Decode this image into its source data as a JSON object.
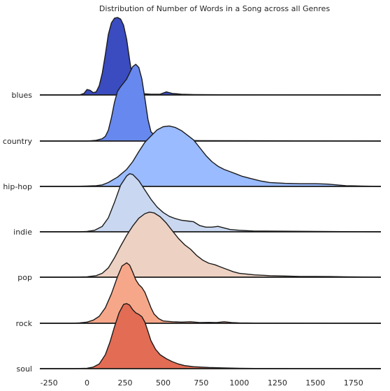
{
  "chart_data": {
    "type": "area",
    "title": "Distribution of Number of Words in a Song across all Genres",
    "xlabel": "",
    "ylabel": "",
    "xlim": [
      -310,
      1930
    ],
    "grid": false,
    "x_ticks": [
      "-250",
      "0",
      "250",
      "500",
      "750",
      "1000",
      "1250",
      "1500",
      "1750"
    ],
    "x_tick_values": [
      -250,
      0,
      250,
      500,
      750,
      1000,
      1250,
      1500,
      1750
    ],
    "series": [
      {
        "name": "blues",
        "color": "#3a4cc0",
        "points": [
          [
            -310,
            0
          ],
          [
            -50,
            0
          ],
          [
            -20,
            0.02
          ],
          [
            0,
            0.07
          ],
          [
            20,
            0.06
          ],
          [
            40,
            0.03
          ],
          [
            60,
            0.04
          ],
          [
            80,
            0.12
          ],
          [
            100,
            0.28
          ],
          [
            120,
            0.52
          ],
          [
            140,
            0.78
          ],
          [
            160,
            0.93
          ],
          [
            180,
            0.99
          ],
          [
            200,
            1.0
          ],
          [
            220,
            0.98
          ],
          [
            240,
            0.9
          ],
          [
            260,
            0.72
          ],
          [
            280,
            0.45
          ],
          [
            300,
            0.2
          ],
          [
            320,
            0.07
          ],
          [
            340,
            0.03
          ],
          [
            380,
            0.015
          ],
          [
            420,
            0.01
          ],
          [
            480,
            0.01
          ],
          [
            520,
            0.04
          ],
          [
            560,
            0.02
          ],
          [
            620,
            0.01
          ],
          [
            700,
            0.005
          ],
          [
            900,
            0.003
          ],
          [
            1930,
            0
          ]
        ]
      },
      {
        "name": "country",
        "color": "#6788ee",
        "points": [
          [
            -310,
            0
          ],
          [
            0,
            0
          ],
          [
            60,
            0.01
          ],
          [
            100,
            0.03
          ],
          [
            120,
            0.06
          ],
          [
            140,
            0.14
          ],
          [
            160,
            0.3
          ],
          [
            180,
            0.5
          ],
          [
            200,
            0.64
          ],
          [
            220,
            0.7
          ],
          [
            240,
            0.75
          ],
          [
            260,
            0.8
          ],
          [
            280,
            0.88
          ],
          [
            300,
            0.96
          ],
          [
            320,
            0.99
          ],
          [
            340,
            0.95
          ],
          [
            360,
            0.8
          ],
          [
            380,
            0.55
          ],
          [
            400,
            0.28
          ],
          [
            420,
            0.12
          ],
          [
            460,
            0.04
          ],
          [
            520,
            0.02
          ],
          [
            600,
            0.01
          ],
          [
            750,
            0.005
          ],
          [
            1930,
            0
          ]
        ]
      },
      {
        "name": "hip-hop",
        "color": "#9abbff",
        "points": [
          [
            -310,
            0
          ],
          [
            -100,
            0
          ],
          [
            0,
            0.005
          ],
          [
            60,
            0.01
          ],
          [
            100,
            0.02
          ],
          [
            140,
            0.05
          ],
          [
            200,
            0.12
          ],
          [
            260,
            0.22
          ],
          [
            300,
            0.32
          ],
          [
            340,
            0.45
          ],
          [
            380,
            0.57
          ],
          [
            420,
            0.65
          ],
          [
            460,
            0.73
          ],
          [
            500,
            0.77
          ],
          [
            540,
            0.78
          ],
          [
            580,
            0.76
          ],
          [
            620,
            0.72
          ],
          [
            660,
            0.66
          ],
          [
            700,
            0.6
          ],
          [
            740,
            0.5
          ],
          [
            780,
            0.4
          ],
          [
            820,
            0.32
          ],
          [
            860,
            0.26
          ],
          [
            900,
            0.22
          ],
          [
            940,
            0.19
          ],
          [
            980,
            0.16
          ],
          [
            1020,
            0.13
          ],
          [
            1080,
            0.1
          ],
          [
            1140,
            0.07
          ],
          [
            1200,
            0.05
          ],
          [
            1300,
            0.04
          ],
          [
            1400,
            0.035
          ],
          [
            1500,
            0.035
          ],
          [
            1580,
            0.03
          ],
          [
            1700,
            0.01
          ],
          [
            1800,
            0.005
          ],
          [
            1930,
            0
          ]
        ]
      },
      {
        "name": "indie",
        "color": "#c9d7f0",
        "points": [
          [
            -310,
            0
          ],
          [
            -50,
            0
          ],
          [
            0,
            0.005
          ],
          [
            50,
            0.02
          ],
          [
            100,
            0.07
          ],
          [
            140,
            0.18
          ],
          [
            180,
            0.38
          ],
          [
            220,
            0.6
          ],
          [
            260,
            0.72
          ],
          [
            280,
            0.75
          ],
          [
            300,
            0.74
          ],
          [
            340,
            0.66
          ],
          [
            380,
            0.54
          ],
          [
            420,
            0.42
          ],
          [
            460,
            0.32
          ],
          [
            500,
            0.25
          ],
          [
            540,
            0.2
          ],
          [
            580,
            0.17
          ],
          [
            620,
            0.15
          ],
          [
            660,
            0.14
          ],
          [
            700,
            0.13
          ],
          [
            740,
            0.08
          ],
          [
            780,
            0.06
          ],
          [
            820,
            0.06
          ],
          [
            860,
            0.07
          ],
          [
            900,
            0.05
          ],
          [
            940,
            0.03
          ],
          [
            1000,
            0.02
          ],
          [
            1100,
            0.01
          ],
          [
            1930,
            0
          ]
        ]
      },
      {
        "name": "pop",
        "color": "#edd1c2",
        "points": [
          [
            -310,
            0
          ],
          [
            -100,
            0
          ],
          [
            0,
            0.005
          ],
          [
            60,
            0.02
          ],
          [
            100,
            0.05
          ],
          [
            140,
            0.12
          ],
          [
            180,
            0.25
          ],
          [
            220,
            0.4
          ],
          [
            260,
            0.54
          ],
          [
            300,
            0.66
          ],
          [
            340,
            0.76
          ],
          [
            380,
            0.82
          ],
          [
            410,
            0.84
          ],
          [
            440,
            0.83
          ],
          [
            480,
            0.78
          ],
          [
            520,
            0.7
          ],
          [
            560,
            0.6
          ],
          [
            600,
            0.5
          ],
          [
            640,
            0.42
          ],
          [
            680,
            0.36
          ],
          [
            720,
            0.28
          ],
          [
            760,
            0.22
          ],
          [
            800,
            0.18
          ],
          [
            840,
            0.16
          ],
          [
            880,
            0.13
          ],
          [
            920,
            0.1
          ],
          [
            960,
            0.07
          ],
          [
            1000,
            0.05
          ],
          [
            1100,
            0.03
          ],
          [
            1200,
            0.02
          ],
          [
            1300,
            0.015
          ],
          [
            1400,
            0.01
          ],
          [
            1500,
            0.01
          ],
          [
            1600,
            0.008
          ],
          [
            1700,
            0.005
          ],
          [
            1930,
            0
          ]
        ]
      },
      {
        "name": "rock",
        "color": "#f7a789",
        "points": [
          [
            -310,
            0
          ],
          [
            -100,
            0
          ],
          [
            -50,
            0.005
          ],
          [
            0,
            0.015
          ],
          [
            40,
            0.04
          ],
          [
            80,
            0.09
          ],
          [
            120,
            0.2
          ],
          [
            160,
            0.38
          ],
          [
            200,
            0.6
          ],
          [
            230,
            0.74
          ],
          [
            260,
            0.78
          ],
          [
            280,
            0.75
          ],
          [
            300,
            0.66
          ],
          [
            320,
            0.56
          ],
          [
            340,
            0.5
          ],
          [
            360,
            0.46
          ],
          [
            380,
            0.4
          ],
          [
            400,
            0.3
          ],
          [
            420,
            0.2
          ],
          [
            440,
            0.12
          ],
          [
            470,
            0.06
          ],
          [
            500,
            0.03
          ],
          [
            560,
            0.02
          ],
          [
            620,
            0.015
          ],
          [
            680,
            0.02
          ],
          [
            740,
            0.01
          ],
          [
            800,
            0.012
          ],
          [
            850,
            0.01
          ],
          [
            900,
            0.02
          ],
          [
            950,
            0.01
          ],
          [
            1000,
            0.005
          ],
          [
            1100,
            0.003
          ],
          [
            1930,
            0
          ]
        ]
      },
      {
        "name": "soul",
        "color": "#e36c55",
        "points": [
          [
            -310,
            0
          ],
          [
            -100,
            0
          ],
          [
            0,
            0.005
          ],
          [
            40,
            0.02
          ],
          [
            80,
            0.06
          ],
          [
            120,
            0.18
          ],
          [
            150,
            0.34
          ],
          [
            180,
            0.54
          ],
          [
            210,
            0.72
          ],
          [
            240,
            0.83
          ],
          [
            260,
            0.84
          ],
          [
            280,
            0.82
          ],
          [
            300,
            0.76
          ],
          [
            320,
            0.72
          ],
          [
            340,
            0.7
          ],
          [
            360,
            0.67
          ],
          [
            380,
            0.6
          ],
          [
            400,
            0.48
          ],
          [
            420,
            0.36
          ],
          [
            450,
            0.25
          ],
          [
            480,
            0.18
          ],
          [
            520,
            0.13
          ],
          [
            560,
            0.09
          ],
          [
            600,
            0.06
          ],
          [
            640,
            0.04
          ],
          [
            700,
            0.025
          ],
          [
            800,
            0.015
          ],
          [
            900,
            0.01
          ],
          [
            1000,
            0.005
          ],
          [
            1100,
            0.003
          ],
          [
            1930,
            0
          ]
        ]
      }
    ]
  }
}
